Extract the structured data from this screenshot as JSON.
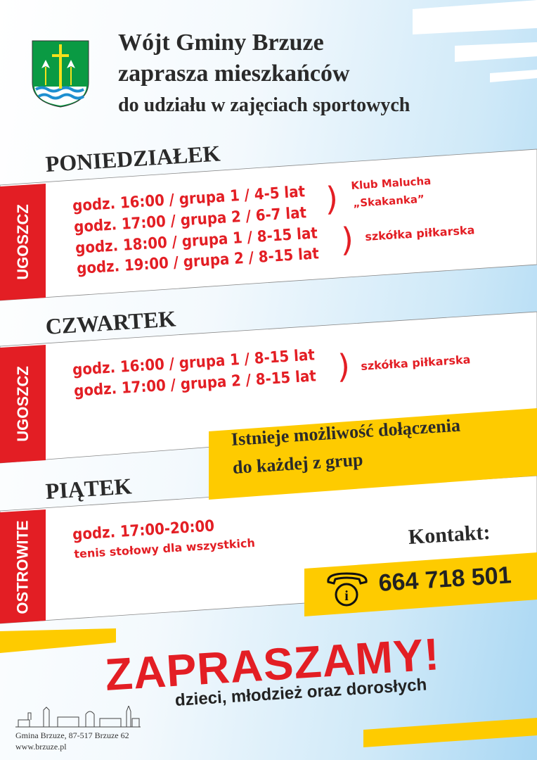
{
  "header": {
    "title_line1": "Wójt Gminy Brzuze",
    "title_line2": "zaprasza mieszkańców",
    "title_line3": "do udziału w zajęciach sportowych",
    "coat_of_arms_icon": "coat-of-arms-icon"
  },
  "colors": {
    "red": "#e31e24",
    "yellow": "#fecb00",
    "blue": "#a9d7f3",
    "dark": "#2a2a2a"
  },
  "sections": [
    {
      "day": "PONIEDZIAŁEK",
      "location": "UGOSZCZ",
      "lines": [
        "godz. 16:00 / grupa 1 / 4-5 lat",
        "godz. 17:00 / grupa 2 / 6-7 lat",
        "godz. 18:00 / grupa 1 / 8-15 lat",
        "godz. 19:00 / grupa 2 / 8-15 lat"
      ],
      "notes": [
        "Klub Malucha",
        "„Skakanka”",
        "szkółka piłkarska"
      ]
    },
    {
      "day": "CZWARTEK",
      "location": "UGOSZCZ",
      "lines": [
        "godz. 16:00 / grupa 1 / 8-15 lat",
        "godz. 17:00 / grupa 2 / 8-15 lat"
      ],
      "notes": [
        "szkółka piłkarska"
      ]
    },
    {
      "day": "PIĄTEK",
      "location": "OSTROWITE",
      "lines": [
        "godz. 17:00-20:00",
        "tenis stołowy dla wszystkich"
      ]
    }
  ],
  "info_box": {
    "line1": "Istnieje możliwość dołączenia",
    "line2": "do każdej z grup"
  },
  "contact": {
    "label": "Kontakt:",
    "phone": "664 718 501",
    "icon": "phone-info-icon"
  },
  "footer": {
    "headline": "ZAPRASZAMY!",
    "subline": "dzieci, młodzież oraz dorosłych",
    "address": "Gmina Brzuze, 87-517 Brzuze 62",
    "website": "www.brzuze.pl",
    "skyline_icon": "town-skyline-icon"
  }
}
